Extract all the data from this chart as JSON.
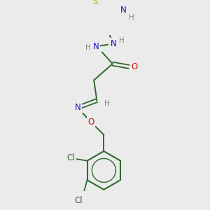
{
  "background_color": "#ebebeb",
  "bond_color": "#2d6a2d",
  "atom_colors": {
    "N": "#1010cc",
    "O": "#cc1010",
    "S": "#bbaa00",
    "Cl": "#2d6a2d",
    "C": "#2d6a2d",
    "H": "#888888"
  },
  "font_size": 8.5,
  "font_size_small": 7.5
}
